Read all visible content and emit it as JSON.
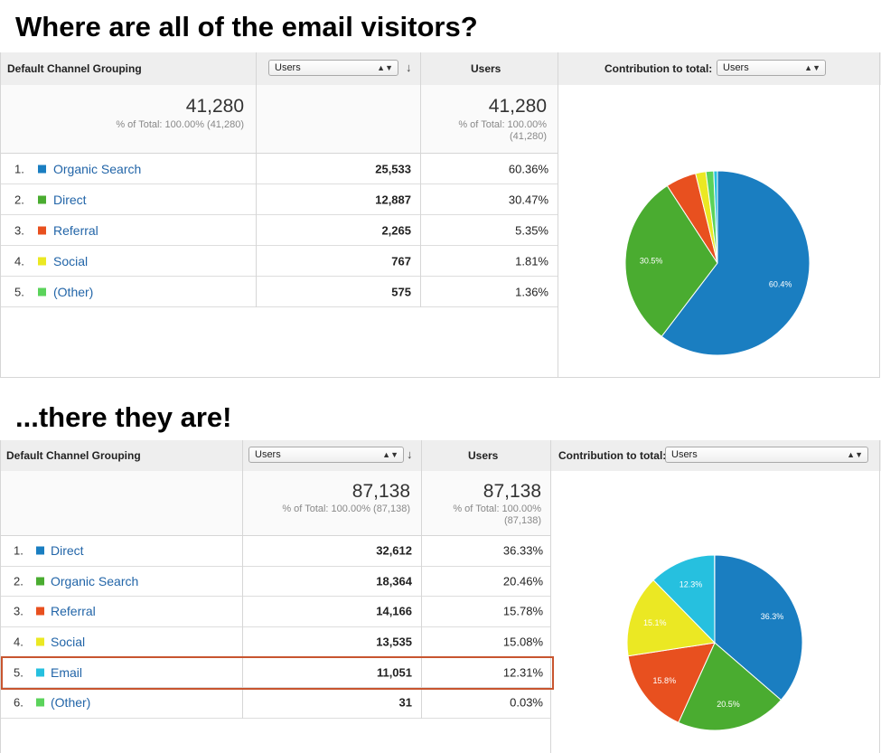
{
  "heading_top": "Where are all of the email visitors?",
  "heading_bottom": "...there they are!",
  "colors": {
    "blue": "#1a7ec1",
    "green": "#4aac30",
    "orange": "#e8501f",
    "yellow": "#ebe823",
    "teal": "#26c0df",
    "light_green": "#5bd35b",
    "highlight": "#c8552f"
  },
  "reports": [
    {
      "header": {
        "dimension_label": "Default Channel Grouping",
        "metric_select": "Users",
        "sort_icon": "arrow-down-icon",
        "metric_label": "Users",
        "contribution_label": "Contribution to total:",
        "contribution_select": "Users"
      },
      "totals": {
        "value": "41,280",
        "pct_text": "% of Total: 100.00% (41,280)",
        "value2": "41,280",
        "pct_text2_line1": "% of Total: 100.00%",
        "pct_text2_line2": "(41,280)"
      },
      "rows": [
        {
          "num": "1.",
          "channel": "Organic Search",
          "color": "#1a7ec1",
          "users": "25,533",
          "share": "60.36%"
        },
        {
          "num": "2.",
          "channel": "Direct",
          "color": "#4aac30",
          "users": "12,887",
          "share": "30.47%"
        },
        {
          "num": "3.",
          "channel": "Referral",
          "color": "#e8501f",
          "users": "2,265",
          "share": "5.35%"
        },
        {
          "num": "4.",
          "channel": "Social",
          "color": "#ebe823",
          "users": "767",
          "share": "1.81%"
        },
        {
          "num": "5.",
          "channel": "(Other)",
          "color": "#5bd35b",
          "users": "575",
          "share": "1.36%"
        }
      ],
      "chart_data": {
        "type": "pie",
        "slices": [
          {
            "label": "Organic Search",
            "value": 60.36,
            "color": "#1a7ec1",
            "slice_label": "60.4%"
          },
          {
            "label": "Direct",
            "value": 30.47,
            "color": "#4aac30",
            "slice_label": "30.5%"
          },
          {
            "label": "Referral",
            "value": 5.35,
            "color": "#e8501f",
            "slice_label": ""
          },
          {
            "label": "Social",
            "value": 1.81,
            "color": "#ebe823",
            "slice_label": ""
          },
          {
            "label": "(Other)",
            "value": 1.36,
            "color": "#5bd35b",
            "slice_label": ""
          },
          {
            "label": "",
            "value": 0.65,
            "color": "#26c0df",
            "slice_label": ""
          }
        ]
      }
    },
    {
      "header": {
        "dimension_label": "Default Channel Grouping",
        "metric_select": "Users",
        "sort_icon": "arrow-down-icon",
        "metric_label": "Users",
        "contribution_label": "Contribution to total:",
        "contribution_select": "Users"
      },
      "totals": {
        "value": "87,138",
        "pct_text": "% of Total: 100.00% (87,138)",
        "value2": "87,138",
        "pct_text2_line1": "% of Total: 100.00%",
        "pct_text2_line2": "(87,138)"
      },
      "rows": [
        {
          "num": "1.",
          "channel": "Direct",
          "color": "#1a7ec1",
          "users": "32,612",
          "share": "36.33%"
        },
        {
          "num": "2.",
          "channel": "Organic Search",
          "color": "#4aac30",
          "users": "18,364",
          "share": "20.46%"
        },
        {
          "num": "3.",
          "channel": "Referral",
          "color": "#e8501f",
          "users": "14,166",
          "share": "15.78%"
        },
        {
          "num": "4.",
          "channel": "Social",
          "color": "#ebe823",
          "users": "13,535",
          "share": "15.08%"
        },
        {
          "num": "5.",
          "channel": "Email",
          "color": "#26c0df",
          "users": "11,051",
          "share": "12.31%",
          "highlighted": true
        },
        {
          "num": "6.",
          "channel": "(Other)",
          "color": "#5bd35b",
          "users": "31",
          "share": "0.03%"
        }
      ],
      "chart_data": {
        "type": "pie",
        "slices": [
          {
            "label": "Direct",
            "value": 36.33,
            "color": "#1a7ec1",
            "slice_label": "36.3%"
          },
          {
            "label": "Organic Search",
            "value": 20.46,
            "color": "#4aac30",
            "slice_label": "20.5%"
          },
          {
            "label": "Referral",
            "value": 15.78,
            "color": "#e8501f",
            "slice_label": "15.8%"
          },
          {
            "label": "Social",
            "value": 15.08,
            "color": "#ebe823",
            "slice_label": "15.1%"
          },
          {
            "label": "Email",
            "value": 12.31,
            "color": "#26c0df",
            "slice_label": "12.3%"
          },
          {
            "label": "(Other)",
            "value": 0.03,
            "color": "#5bd35b",
            "slice_label": ""
          }
        ]
      }
    }
  ]
}
